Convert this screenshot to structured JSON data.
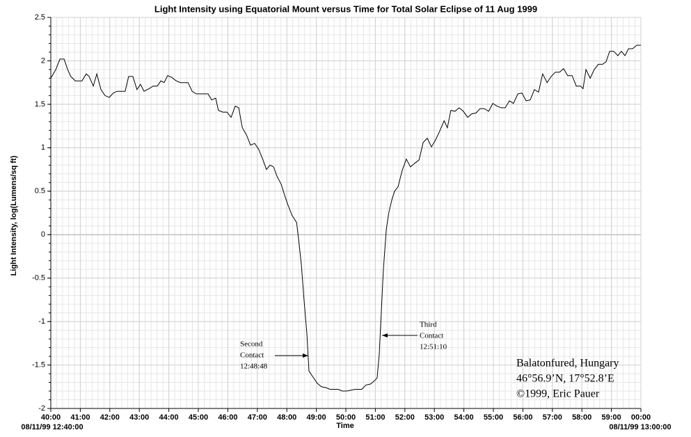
{
  "chart_data": {
    "type": "line",
    "title": "Light Intensity using Equatorial Mount versus Time for Total Solar Eclipse of 11 Aug 1999",
    "x_label": "Time",
    "y_label": "Light Intensity, log(Lumens/sq ft)",
    "x_start_label": "08/11/99 12:40:00",
    "x_end_label": "08/11/99 13:00:00",
    "color": "#000000",
    "grid": true,
    "xlim": [
      40,
      60
    ],
    "ylim": [
      -2,
      2.5
    ],
    "yticks": [
      2.5,
      2,
      1.5,
      1,
      0.5,
      0,
      -0.5,
      -1,
      -1.5,
      -2
    ],
    "xticks": [
      {
        "value": 40,
        "label": "40:00"
      },
      {
        "value": 41,
        "label": "41:00"
      },
      {
        "value": 42,
        "label": "42:00"
      },
      {
        "value": 43,
        "label": "43:00"
      },
      {
        "value": 44,
        "label": "44:00"
      },
      {
        "value": 45,
        "label": "45:00"
      },
      {
        "value": 46,
        "label": "46:00"
      },
      {
        "value": 47,
        "label": "47:00"
      },
      {
        "value": 48,
        "label": "48:00"
      },
      {
        "value": 49,
        "label": "49:00"
      },
      {
        "value": 50,
        "label": "50:00"
      },
      {
        "value": 51,
        "label": "51:00"
      },
      {
        "value": 52,
        "label": "52:00"
      },
      {
        "value": 53,
        "label": "53:00"
      },
      {
        "value": 54,
        "label": "54:00"
      },
      {
        "value": 55,
        "label": "55:00"
      },
      {
        "value": 56,
        "label": "56:00"
      },
      {
        "value": 57,
        "label": "57:00"
      },
      {
        "value": 58,
        "label": "58:00"
      },
      {
        "value": 59,
        "label": "59:00"
      },
      {
        "value": 60,
        "label": "00:00"
      }
    ],
    "x": [
      40.0,
      40.17,
      40.31,
      40.45,
      40.57,
      40.68,
      40.83,
      41.06,
      41.2,
      41.3,
      41.44,
      41.56,
      41.7,
      41.84,
      41.98,
      42.12,
      42.24,
      42.52,
      42.64,
      42.78,
      42.92,
      43.04,
      43.16,
      43.33,
      43.47,
      43.61,
      43.73,
      43.84,
      43.96,
      44.1,
      44.25,
      44.39,
      44.65,
      44.79,
      44.93,
      45.33,
      45.45,
      45.59,
      45.68,
      45.83,
      45.97,
      46.11,
      46.25,
      46.37,
      46.49,
      46.63,
      46.77,
      46.91,
      47.05,
      47.19,
      47.31,
      47.43,
      47.55,
      47.67,
      47.81,
      47.92,
      48.04,
      48.18,
      48.33,
      48.4,
      48.49,
      48.58,
      48.68,
      48.75,
      48.89,
      49.03,
      49.17,
      49.32,
      49.46,
      49.74,
      49.88,
      50.02,
      50.17,
      50.31,
      50.54,
      50.68,
      50.83,
      50.94,
      51.06,
      51.13,
      51.2,
      51.27,
      51.37,
      51.46,
      51.56,
      51.65,
      51.77,
      51.91,
      52.05,
      52.19,
      52.33,
      52.48,
      52.62,
      52.76,
      52.9,
      53.04,
      53.18,
      53.33,
      53.44,
      53.56,
      53.7,
      53.84,
      53.98,
      54.13,
      54.27,
      54.41,
      54.55,
      54.69,
      54.84,
      54.98,
      55.12,
      55.26,
      55.4,
      55.54,
      55.68,
      55.83,
      55.97,
      56.11,
      56.25,
      56.39,
      56.53,
      56.67,
      56.82,
      56.96,
      57.1,
      57.24,
      57.38,
      57.52,
      57.67,
      57.81,
      57.95,
      58.04,
      58.14,
      58.28,
      58.42,
      58.56,
      58.7,
      58.82,
      58.94,
      59.08,
      59.22,
      59.34,
      59.46,
      59.58,
      59.72,
      59.86,
      60.0
    ],
    "values": [
      1.8,
      1.9,
      2.02,
      2.02,
      1.9,
      1.82,
      1.77,
      1.77,
      1.85,
      1.82,
      1.71,
      1.85,
      1.67,
      1.6,
      1.58,
      1.63,
      1.65,
      1.65,
      1.82,
      1.82,
      1.67,
      1.73,
      1.65,
      1.68,
      1.71,
      1.71,
      1.77,
      1.75,
      1.83,
      1.81,
      1.77,
      1.75,
      1.75,
      1.65,
      1.62,
      1.62,
      1.55,
      1.57,
      1.43,
      1.41,
      1.41,
      1.35,
      1.48,
      1.46,
      1.23,
      1.15,
      1.03,
      1.05,
      0.98,
      0.86,
      0.75,
      0.8,
      0.78,
      0.67,
      0.58,
      0.46,
      0.34,
      0.22,
      0.14,
      -0.06,
      -0.34,
      -0.74,
      -1.14,
      -1.57,
      -1.64,
      -1.71,
      -1.75,
      -1.76,
      -1.78,
      -1.78,
      -1.8,
      -1.8,
      -1.79,
      -1.78,
      -1.78,
      -1.73,
      -1.72,
      -1.69,
      -1.65,
      -1.39,
      -0.9,
      -0.42,
      0.06,
      0.26,
      0.4,
      0.5,
      0.55,
      0.74,
      0.87,
      0.78,
      0.82,
      0.86,
      1.06,
      1.11,
      1.01,
      1.09,
      1.19,
      1.31,
      1.23,
      1.43,
      1.42,
      1.46,
      1.42,
      1.35,
      1.39,
      1.4,
      1.45,
      1.45,
      1.42,
      1.51,
      1.48,
      1.46,
      1.46,
      1.54,
      1.51,
      1.62,
      1.63,
      1.54,
      1.55,
      1.67,
      1.64,
      1.85,
      1.75,
      1.82,
      1.87,
      1.87,
      1.91,
      1.83,
      1.83,
      1.71,
      1.71,
      1.68,
      1.9,
      1.8,
      1.9,
      1.96,
      1.96,
      1.99,
      2.11,
      2.11,
      2.06,
      2.11,
      2.06,
      2.14,
      2.14,
      2.18,
      2.18
    ],
    "annotations": [
      {
        "lines": [
          "Second",
          "Contact",
          "12:48:48"
        ]
      },
      {
        "lines": [
          "Third",
          "Contact",
          "12:51:10"
        ]
      }
    ],
    "info_box": [
      "Balatonfured, Hungary",
      "46°56.9’N, 17°52.8’E",
      "©1999, Eric Pauer"
    ]
  }
}
